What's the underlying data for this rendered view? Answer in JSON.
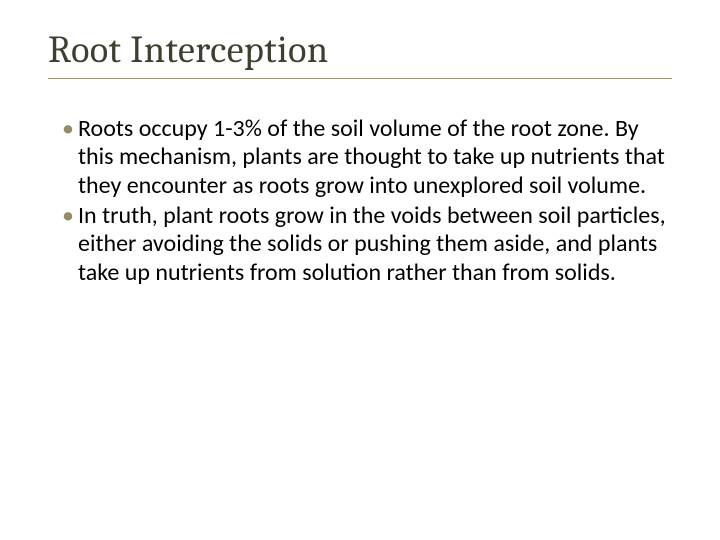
{
  "slide": {
    "title": "Root Interception",
    "title_color": "#3f3f2f",
    "title_fontsize": 38,
    "underline_color": "#a09a7a",
    "underline_width": 624,
    "body_color": "#000000",
    "body_fontsize": 24,
    "body_lineheight": 1.18,
    "bullet_color": "#938d6a",
    "background_color": "#ffffff",
    "bullets": [
      "Roots occupy 1-3% of the soil volume of the root zone. By this mechanism, plants are thought to take up nutrients that they encounter as roots grow into unexplored soil volume.",
      "In truth, plant roots grow in the voids between soil particles, either avoiding the solids or pushing them aside, and plants take up nutrients from solution rather than from solids."
    ]
  }
}
